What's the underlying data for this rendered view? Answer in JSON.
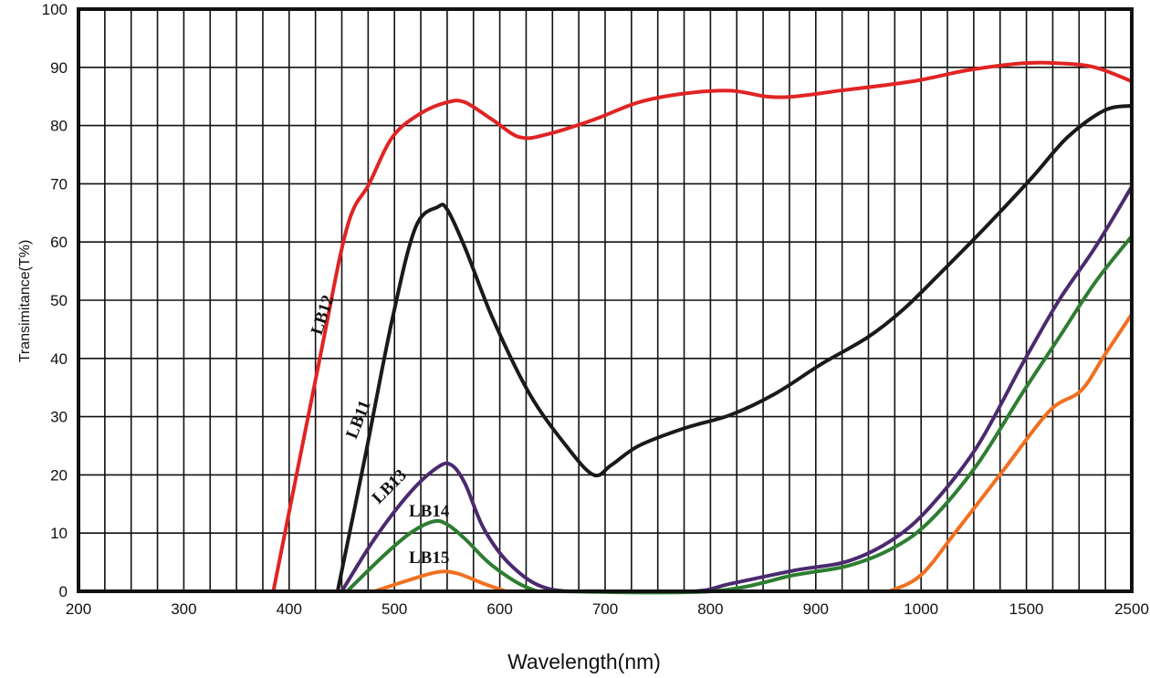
{
  "chart_data": {
    "type": "line",
    "title": "",
    "xlabel": "Wavelength(nm)",
    "ylabel": "Transimitance(T%)",
    "x_ticks": [
      200,
      300,
      400,
      500,
      600,
      700,
      800,
      900,
      1000,
      1500,
      2500
    ],
    "x_scale": "piecewise (equal spacing between listed ticks)",
    "y_ticks": [
      0,
      10,
      20,
      30,
      40,
      50,
      60,
      70,
      80,
      90,
      100
    ],
    "xlim": [
      200,
      2500
    ],
    "ylim": [
      0,
      100
    ],
    "grid": true,
    "legend": "none (labels beside curves)",
    "series": [
      {
        "name": "LB12",
        "color": "#e02424",
        "x": [
          385,
          428,
          455,
          476,
          498,
          524,
          550,
          567,
          593,
          619,
          645,
          689,
          732,
          775,
          819,
          853,
          880,
          923,
          992,
          1220,
          1480,
          1810,
          2150,
          2500
        ],
        "y": [
          0,
          39,
          62.5,
          70,
          78,
          82,
          84,
          84,
          81,
          78,
          78.5,
          81,
          84,
          85.5,
          86,
          85,
          85,
          86,
          87.6,
          89.5,
          90.7,
          90.7,
          90,
          87.6
        ]
      },
      {
        "name": "LB11",
        "color": "#1a1a1a",
        "x": [
          446,
          472,
          498,
          520,
          541,
          550,
          567,
          593,
          628,
          663,
          689,
          706,
          732,
          775,
          819,
          862,
          905,
          949,
          983,
          1090,
          1305,
          1550,
          1890,
          2240,
          2500
        ],
        "y": [
          0,
          23,
          46.8,
          62.5,
          66,
          65.6,
          59,
          47,
          34,
          25,
          20,
          21.7,
          25,
          28,
          30.3,
          34,
          39,
          43.6,
          48.4,
          54.6,
          62.5,
          71,
          78,
          82.6,
          83.4
        ]
      },
      {
        "name": "LB13",
        "color": "#4b2a6e",
        "x": [
          450,
          481,
          515,
          541,
          554,
          567,
          585,
          611,
          645,
          697,
          784,
          819,
          880,
          931,
          974,
          1045,
          1265,
          1480,
          1810,
          2150,
          2500
        ],
        "y": [
          0,
          9,
          17,
          21.3,
          21.7,
          18.5,
          10.7,
          4.4,
          0.5,
          0,
          0,
          1.3,
          3.6,
          5.2,
          9,
          14.6,
          24.8,
          39,
          50,
          59,
          69.5
        ]
      },
      {
        "name": "LB14",
        "color": "#2e7d32",
        "x": [
          455,
          489,
          515,
          537,
          550,
          567,
          593,
          628,
          660,
          801,
          880,
          931,
          974,
          1045,
          1265,
          1480,
          1810,
          2150,
          2500
        ],
        "y": [
          0,
          6,
          10,
          12,
          11.5,
          9,
          4.4,
          0.5,
          0,
          0,
          2.8,
          4.4,
          7.5,
          12.2,
          21.7,
          34,
          43.6,
          53,
          61
        ]
      },
      {
        "name": "LB15",
        "color": "#f07020",
        "x": [
          481,
          515,
          541,
          559,
          585,
          606
        ],
        "y": [
          0,
          2,
          3.3,
          3.1,
          1.3,
          0
        ]
      },
      {
        "name": "LB15",
        "color": "#f07020",
        "x": [
          970,
          1000,
          1175,
          1395,
          1720,
          2020,
          2240,
          2500
        ],
        "y": [
          0,
          2.8,
          10.7,
          21,
          31,
          34.5,
          40.5,
          47.6
        ]
      }
    ]
  }
}
